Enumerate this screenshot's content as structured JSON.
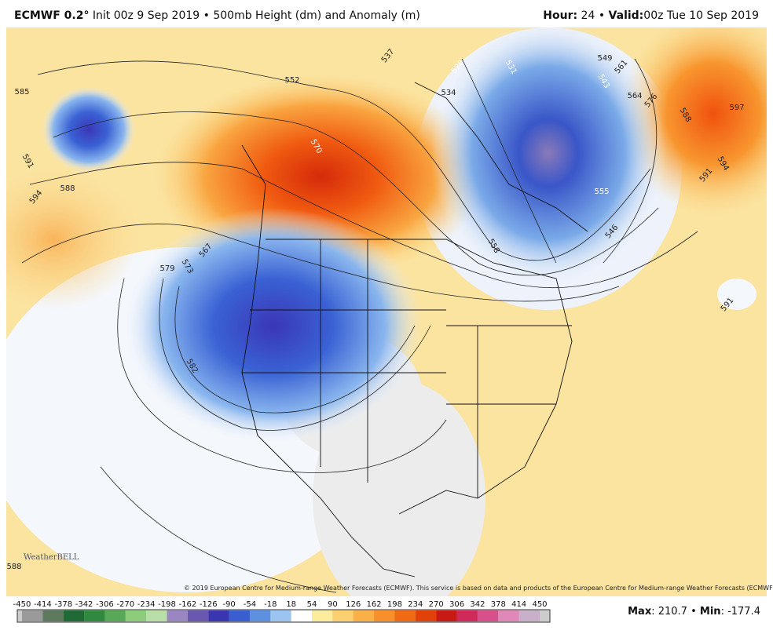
{
  "header": {
    "model": "ECMWF 0.2°",
    "init": "Init 00z 9 Sep 2019",
    "separator": "•",
    "product": "500mb Height (dm) and Anomaly (m)",
    "hour_label": "Hour:",
    "hour": "24",
    "valid_label": "Valid:",
    "valid": "00z Tue 10 Sep 2019"
  },
  "contour_labels": [
    "552",
    "570",
    "537",
    "534",
    "528",
    "531",
    "549",
    "543",
    "561",
    "564",
    "576",
    "588",
    "597",
    "594",
    "591",
    "555",
    "546",
    "558",
    "585",
    "591",
    "594",
    "588",
    "567",
    "573",
    "579",
    "582",
    "591",
    "588"
  ],
  "colorbar": {
    "labels": [
      -450,
      -414,
      -378,
      -342,
      -306,
      -270,
      -234,
      -198,
      -162,
      -126,
      -90,
      -54,
      -18,
      18,
      54,
      90,
      126,
      162,
      198,
      234,
      270,
      306,
      342,
      378,
      414,
      450
    ]
  },
  "stats": {
    "max_label": "Max",
    "max": "210.7",
    "separator": "•",
    "min_label": "Min",
    "min": "-177.4"
  },
  "copyright": "© 2019 European Centre for Medium-range Weather Forecasts (ECMWF). This service is based on data and products of the European Centre for Medium-range Weather Forecasts (ECMWF).",
  "logo": "WeatherBELL"
}
